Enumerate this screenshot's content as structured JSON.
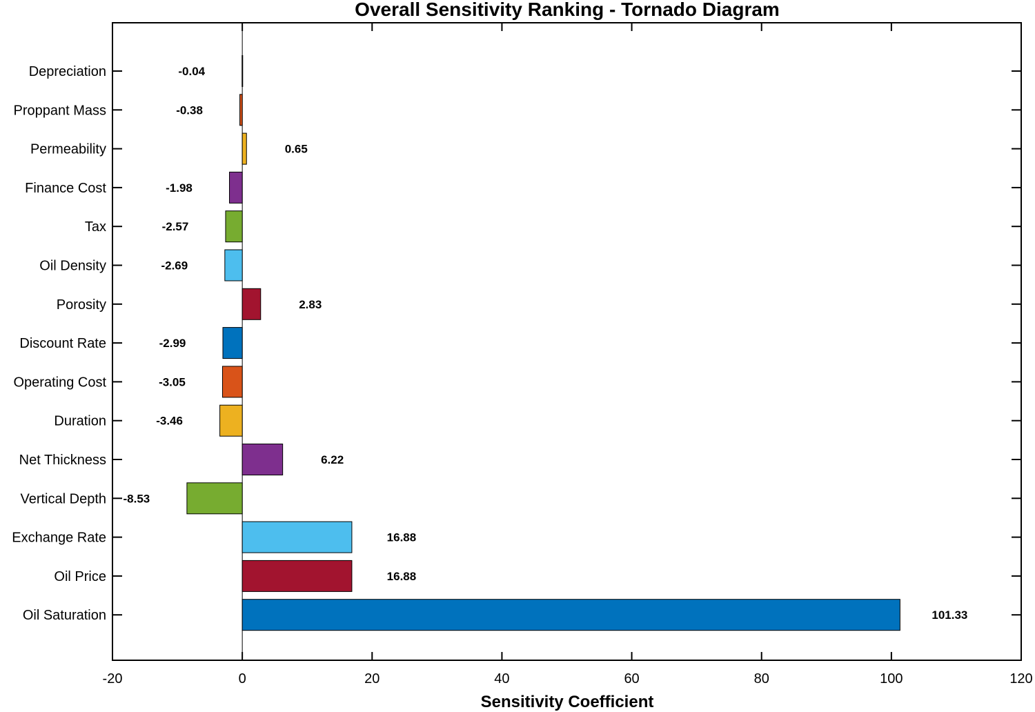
{
  "chart_data": {
    "type": "bar",
    "orientation": "horizontal",
    "title": "Overall Sensitivity Ranking - Tornado Diagram",
    "xlabel": "Sensitivity Coefficient",
    "ylabel": "",
    "xlim": [
      -20,
      120
    ],
    "xticks": [
      -20,
      0,
      20,
      40,
      60,
      80,
      100,
      120
    ],
    "xtick_labels": [
      "-20",
      "0",
      "20",
      "40",
      "60",
      "80",
      "100",
      "120"
    ],
    "grid": false,
    "categories": [
      "Depreciation",
      "Proppant Mass",
      "Permeability",
      "Finance Cost",
      "Tax",
      "Oil Density",
      "Porosity",
      "Discount Rate",
      "Operating Cost",
      "Duration",
      "Net Thickness",
      "Vertical Depth",
      "Exchange Rate",
      "Oil Price",
      "Oil Saturation"
    ],
    "values": [
      -0.04,
      -0.38,
      0.65,
      -1.98,
      -2.57,
      -2.69,
      2.83,
      -2.99,
      -3.05,
      -3.46,
      6.22,
      -8.53,
      16.88,
      16.88,
      101.33
    ],
    "value_labels": [
      "-0.04",
      "-0.38",
      "0.65",
      "-1.98",
      "-2.57",
      "-2.69",
      "2.83",
      "-2.99",
      "-3.05",
      "-3.46",
      "6.22",
      "-8.53",
      "16.88",
      "16.88",
      "101.33"
    ],
    "colors": [
      "#0072BD",
      "#D95319",
      "#EDB120",
      "#7E2F8E",
      "#77AC30",
      "#4DBEEE",
      "#A2142F",
      "#0072BD",
      "#D95319",
      "#EDB120",
      "#7E2F8E",
      "#77AC30",
      "#4DBEEE",
      "#A2142F",
      "#0072BD"
    ]
  }
}
